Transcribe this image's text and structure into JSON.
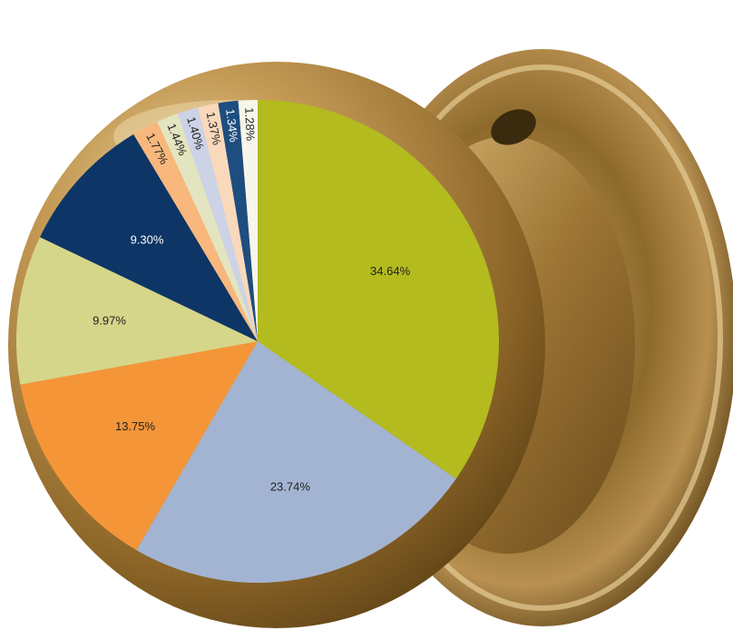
{
  "chart_data": {
    "type": "pie",
    "start_angle_deg": 0,
    "direction": "clockwise",
    "values": [
      34.64,
      23.74,
      13.75,
      9.97,
      9.3,
      1.77,
      1.44,
      1.4,
      1.37,
      1.34,
      1.28
    ],
    "labels": [
      "34.64%",
      "23.74%",
      "13.75%",
      "9.97%",
      "9.30%",
      "1.77%",
      "1.44%",
      "1.40%",
      "1.37%",
      "1.34%",
      "1.28%"
    ],
    "colors": [
      "#b3bb1f",
      "#a3b4d2",
      "#f49538",
      "#d6d68a",
      "#0d3566",
      "#f8b77c",
      "#e3e5c0",
      "#cdd3e6",
      "#f9d9bb",
      "#1e4d7f",
      "#f7f6ea"
    ],
    "label_colors": [
      "#222222",
      "#222222",
      "#222222",
      "#222222",
      "#ffffff",
      "#222222",
      "#222222",
      "#222222",
      "#222222",
      "#ffffff",
      "#222222"
    ],
    "background": "brass door knob"
  }
}
